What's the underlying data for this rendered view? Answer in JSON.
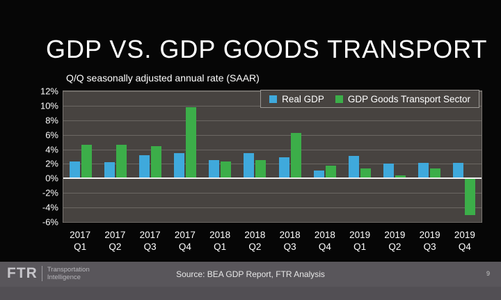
{
  "title": "GDP VS. GDP GOODS TRANSPORT",
  "chart_data": {
    "type": "bar",
    "title": "GDP VS. GDP GOODS TRANSPORT",
    "subtitle": "Q/Q seasonally adjusted annual rate (SAAR)",
    "categories": [
      "2017 Q1",
      "2017 Q2",
      "2017 Q3",
      "2017 Q4",
      "2018 Q1",
      "2018 Q2",
      "2018 Q3",
      "2018 Q4",
      "2019 Q1",
      "2019 Q2",
      "2019 Q3",
      "2019 Q4"
    ],
    "series": [
      {
        "name": "Real GDP",
        "color": "#3fa9dc",
        "values": [
          2.3,
          2.2,
          3.2,
          3.5,
          2.5,
          3.5,
          2.9,
          1.1,
          3.1,
          2.0,
          2.1,
          2.1
        ]
      },
      {
        "name": "GDP Goods Transport Sector",
        "color": "#3cae49",
        "values": [
          4.6,
          4.6,
          4.4,
          9.8,
          2.3,
          2.5,
          6.3,
          1.8,
          1.4,
          0.4,
          1.4,
          -5.0
        ]
      }
    ],
    "ylim": [
      -6,
      12
    ],
    "yticks": [
      {
        "value": 12,
        "label": "12%"
      },
      {
        "value": 10,
        "label": "10%"
      },
      {
        "value": 8,
        "label": "8%"
      },
      {
        "value": 6,
        "label": "6%"
      },
      {
        "value": 4,
        "label": "4%"
      },
      {
        "value": 2,
        "label": "2%"
      },
      {
        "value": 0,
        "label": "0%"
      },
      {
        "value": -2,
        "label": "-2%"
      },
      {
        "value": -4,
        "label": "-4%"
      },
      {
        "value": -6,
        "label": "-6%"
      }
    ],
    "grid": true,
    "legend_position": "top-right"
  },
  "colors": {
    "background": "#060606",
    "plot_background": "#474340",
    "gridline": "#6b6763",
    "zero_line": "#f2f2f2",
    "axis_text": "#ffffff",
    "real_gdp": "#3fa9dc",
    "goods_transport": "#3cae49",
    "footer_bar": "#59565b",
    "footer_strip": "#524f54"
  },
  "footer": {
    "logo": "FTR",
    "tagline_line1": "Transportation",
    "tagline_line2": "Intelligence",
    "source": "Source: BEA GDP Report, FTR Analysis",
    "page_number": "9"
  }
}
